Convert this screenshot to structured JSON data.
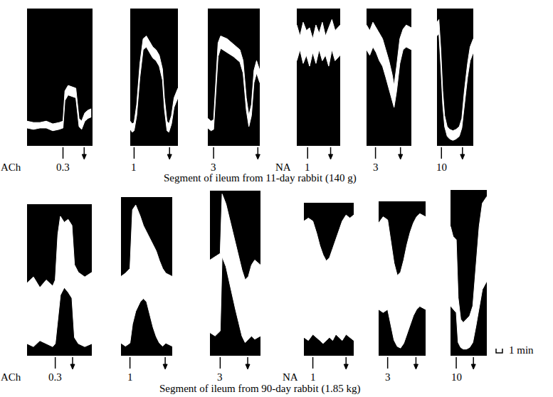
{
  "chart_data": [
    {
      "type": "band",
      "drug": "ACh",
      "dose": 0.3,
      "dose_time": 5.6,
      "wash_time": 8.9,
      "xlim": [
        0,
        10.2
      ],
      "ylim": [
        0,
        100
      ],
      "tick_labels": false,
      "color": "#ffffff",
      "x": [
        0,
        1,
        2,
        3,
        4,
        5,
        5.6,
        5.9,
        6.4,
        7,
        7.6,
        8.1,
        8.5,
        9,
        9.5,
        10
      ],
      "upper": [
        18,
        17,
        17,
        18,
        16,
        17,
        18,
        40,
        44,
        43,
        42,
        20,
        18,
        24,
        26,
        27
      ],
      "lower": [
        13,
        12,
        13,
        13,
        11,
        12,
        13,
        33,
        37,
        36,
        35,
        14,
        12,
        18,
        20,
        21
      ]
    },
    {
      "type": "band",
      "dose": 1,
      "dose_time": 0.6,
      "wash_time": 6.1,
      "xlim": [
        0,
        7.4
      ],
      "ylim": [
        0,
        100
      ],
      "tick_labels": false,
      "color": "#ffffff",
      "x": [
        0,
        0.3,
        0.6,
        1.0,
        1.5,
        2.0,
        2.5,
        3.0,
        3.5,
        4.0,
        4.5,
        5.0,
        5.3,
        5.7,
        6.0,
        6.4,
        6.8,
        7.4
      ],
      "upper": [
        18,
        16,
        17,
        30,
        60,
        78,
        80,
        76,
        72,
        70,
        66,
        56,
        35,
        18,
        16,
        22,
        35,
        42
      ],
      "lower": [
        12,
        10,
        11,
        22,
        50,
        70,
        72,
        68,
        64,
        62,
        58,
        48,
        27,
        11,
        10,
        16,
        28,
        35
      ]
    },
    {
      "type": "band",
      "dose": 3,
      "dose_time": 0.9,
      "wash_time": 7.8,
      "xlim": [
        0,
        8.1
      ],
      "ylim": [
        0,
        100
      ],
      "tick_labels": false,
      "color": "#ffffff",
      "x": [
        0,
        0.5,
        0.9,
        1.2,
        1.6,
        2,
        3,
        4,
        5,
        5.5,
        6,
        6.4,
        6.8,
        7.2,
        7.6,
        8.1
      ],
      "upper": [
        20,
        18,
        19,
        45,
        75,
        80,
        78,
        74,
        70,
        62,
        35,
        22,
        30,
        55,
        62,
        55
      ],
      "lower": [
        13,
        11,
        12,
        35,
        65,
        71,
        68,
        65,
        61,
        53,
        26,
        14,
        22,
        46,
        53,
        46
      ]
    },
    {
      "type": "band",
      "drug": "NA",
      "dose": 1,
      "dose_time": 1.7,
      "wash_time": 5.3,
      "xlim": [
        0,
        6.8
      ],
      "ylim": [
        0,
        100
      ],
      "tick_labels": false,
      "color": "#ffffff",
      "x": [
        0,
        0.5,
        1,
        1.5,
        2,
        2.5,
        3,
        3.5,
        4,
        4.5,
        5,
        5.5,
        6,
        6.8
      ],
      "upper": [
        88,
        80,
        90,
        84,
        86,
        78,
        88,
        82,
        90,
        80,
        86,
        92,
        84,
        88
      ],
      "lower": [
        62,
        70,
        60,
        66,
        58,
        68,
        60,
        70,
        62,
        66,
        58,
        70,
        62,
        66
      ]
    },
    {
      "type": "band",
      "dose": 3,
      "dose_time": 1.4,
      "wash_time": 5.3,
      "xlim": [
        0,
        7
      ],
      "ylim": [
        0,
        100
      ],
      "tick_labels": false,
      "color": "#ffffff",
      "x": [
        0,
        0.5,
        1,
        1.5,
        2,
        2.5,
        3,
        3.5,
        4,
        4.3,
        4.7,
        5.2,
        5.7,
        6.2,
        7
      ],
      "upper": [
        88,
        84,
        90,
        86,
        82,
        78,
        70,
        62,
        52,
        44,
        58,
        78,
        85,
        88,
        86
      ],
      "lower": [
        70,
        66,
        72,
        68,
        62,
        58,
        50,
        42,
        34,
        28,
        40,
        60,
        70,
        72,
        70
      ]
    },
    {
      "type": "band",
      "dose": 10,
      "dose_time": 0.7,
      "wash_time": 4,
      "xlim": [
        0,
        5.7
      ],
      "ylim": [
        0,
        100
      ],
      "tick_labels": false,
      "color": "#ffffff",
      "x": [
        0,
        0.3,
        0.6,
        0.9,
        1.2,
        1.6,
        2,
        2.5,
        3,
        3.5,
        3.9,
        4.3,
        4.8,
        5.2,
        5.7
      ],
      "upper": [
        90,
        92,
        70,
        40,
        22,
        14,
        12,
        11,
        12,
        14,
        20,
        40,
        60,
        72,
        78
      ],
      "lower": [
        80,
        82,
        58,
        30,
        14,
        7,
        5,
        4,
        5,
        7,
        13,
        30,
        50,
        62,
        68
      ]
    },
    {
      "type": "band",
      "drug": "ACh",
      "dose": 0.3,
      "dose_time": 4.4,
      "wash_time": 7.1,
      "xlim": [
        0,
        10.1
      ],
      "ylim": [
        0,
        100
      ],
      "tick_labels": false,
      "color": "#ffffff",
      "x": [
        0,
        1,
        2,
        3,
        4,
        4.4,
        4.8,
        5.2,
        5.8,
        6.4,
        7.0,
        7.4,
        8,
        9,
        10.1
      ],
      "upper": [
        48,
        52,
        45,
        50,
        46,
        50,
        80,
        92,
        88,
        90,
        86,
        60,
        55,
        52,
        55
      ],
      "lower": [
        8,
        6,
        10,
        8,
        6,
        8,
        25,
        40,
        45,
        42,
        38,
        12,
        8,
        6,
        8
      ]
    },
    {
      "type": "band",
      "dose": 1,
      "dose_time": 1.4,
      "wash_time": 6.9,
      "xlim": [
        0,
        8
      ],
      "ylim": [
        0,
        100
      ],
      "tick_labels": false,
      "color": "#ffffff",
      "x": [
        0,
        0.7,
        1.4,
        1.8,
        2.3,
        3,
        3.5,
        4,
        4.5,
        5,
        5.5,
        6,
        6.5,
        7,
        8
      ],
      "upper": [
        50,
        52,
        55,
        92,
        95,
        88,
        82,
        78,
        74,
        70,
        66,
        60,
        55,
        52,
        50
      ],
      "lower": [
        8,
        6,
        8,
        20,
        28,
        34,
        36,
        34,
        26,
        18,
        12,
        8,
        6,
        8,
        6
      ]
    },
    {
      "type": "band",
      "dose": 3,
      "dose_time": 1.6,
      "wash_time": 5.9,
      "xlim": [
        0,
        7.9
      ],
      "ylim": [
        0,
        100
      ],
      "tick_labels": false,
      "color": "#ffffff",
      "x": [
        0,
        0.8,
        1.6,
        1.9,
        2.5,
        3,
        3.5,
        4,
        4.5,
        5,
        5.5,
        6,
        6.5,
        7,
        7.9
      ],
      "upper": [
        58,
        60,
        62,
        98,
        92,
        84,
        76,
        68,
        60,
        52,
        46,
        48,
        55,
        58,
        55
      ],
      "lower": [
        14,
        12,
        15,
        60,
        54,
        45,
        36,
        28,
        20,
        12,
        8,
        10,
        12,
        10,
        12
      ]
    },
    {
      "type": "band",
      "drug": "NA",
      "dose": 1,
      "dose_time": 1.4,
      "wash_time": 6.6,
      "xlim": [
        0,
        7.8
      ],
      "ylim": [
        0,
        100
      ],
      "tick_labels": false,
      "color": "#ffffff",
      "x": [
        0,
        0.7,
        1.4,
        2,
        2.5,
        3,
        3.5,
        4,
        4.5,
        5,
        5.5,
        6,
        6.6,
        7.2,
        7.8
      ],
      "upper": [
        88,
        90,
        88,
        80,
        72,
        66,
        62,
        64,
        70,
        76,
        82,
        88,
        92,
        90,
        92
      ],
      "lower": [
        12,
        10,
        14,
        12,
        10,
        8,
        10,
        12,
        10,
        14,
        12,
        10,
        14,
        12,
        10
      ]
    },
    {
      "type": "band",
      "dose": 3,
      "dose_time": 1.4,
      "wash_time": 5.8,
      "xlim": [
        0,
        7.3
      ],
      "ylim": [
        0,
        100
      ],
      "tick_labels": false,
      "color": "#ffffff",
      "x": [
        0,
        0.7,
        1.4,
        1.9,
        2.4,
        2.9,
        3.4,
        3.9,
        4.4,
        4.9,
        5.4,
        5.9,
        6.4,
        7.3
      ],
      "upper": [
        86,
        90,
        88,
        75,
        60,
        52,
        54,
        62,
        72,
        80,
        86,
        90,
        92,
        90
      ],
      "lower": [
        30,
        28,
        30,
        20,
        10,
        6,
        5,
        8,
        14,
        20,
        26,
        30,
        32,
        30
      ]
    },
    {
      "type": "band",
      "dose": 10,
      "dose_time": 0.9,
      "wash_time": 3.6,
      "xlim": [
        0,
        5.7
      ],
      "ylim": [
        0,
        100
      ],
      "tick_labels": false,
      "color": "#ffffff",
      "x": [
        0,
        0.4,
        0.9,
        1.2,
        1.6,
        2,
        2.5,
        3,
        3.5,
        4,
        4.5,
        5,
        5.7
      ],
      "upper": [
        78,
        72,
        70,
        35,
        22,
        20,
        22,
        24,
        30,
        55,
        78,
        92,
        96
      ],
      "lower": [
        30,
        28,
        26,
        8,
        5,
        4,
        4,
        5,
        8,
        18,
        30,
        40,
        45
      ]
    }
  ],
  "captions": [
    "Segment of ileum from 11-day rabbit (140 g)",
    "Segment of ileum from 90-day rabbit (1.85 kg)"
  ],
  "scale_bar": {
    "label": "1 min",
    "value": 1
  }
}
